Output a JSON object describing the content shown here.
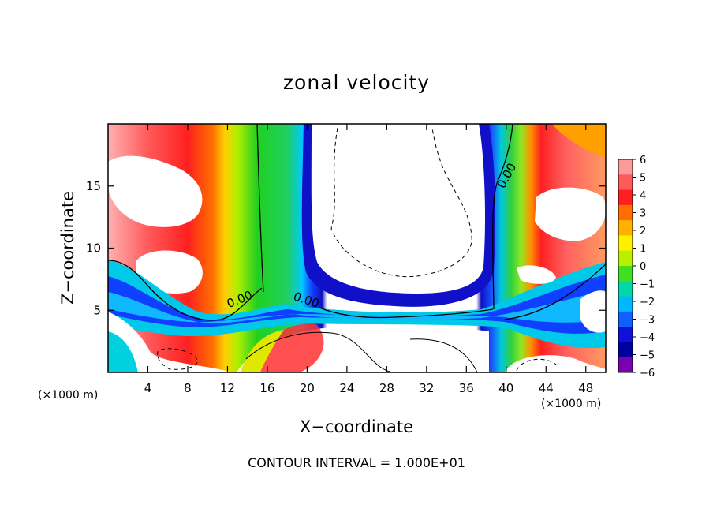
{
  "chart_data": {
    "type": "heatmap",
    "title": "zonal velocity",
    "xlabel": "X−coordinate",
    "ylabel": "Z−coordinate",
    "x_unit_left": "(×1000 m)",
    "x_unit_right": "(×1000 m)",
    "xlim": [
      0,
      50
    ],
    "ylim": [
      0,
      20
    ],
    "x_ticks": [
      4,
      8,
      12,
      16,
      20,
      24,
      28,
      32,
      36,
      40,
      44,
      48
    ],
    "x_tick_labels": [
      "4",
      "8",
      "12",
      "16",
      "20",
      "24",
      "28",
      "32",
      "36",
      "40",
      "44",
      "48"
    ],
    "y_ticks": [
      5,
      10,
      15
    ],
    "y_tick_labels": [
      "5",
      "10",
      "15"
    ],
    "colorbar": {
      "levels": [
        6,
        5,
        4,
        3,
        2,
        1,
        0,
        -1,
        -2,
        -3,
        -4,
        -5,
        -6
      ],
      "labels": [
        "6",
        "5",
        "4",
        "3",
        "2",
        "1",
        "0",
        "−1",
        "−2",
        "−3",
        "−4",
        "−5",
        "−6"
      ],
      "colors": [
        "#ff9a9a",
        "#ff5a5a",
        "#ff1f1f",
        "#ff6e00",
        "#ffb000",
        "#fff000",
        "#b8f000",
        "#40e020",
        "#00d8a8",
        "#00b8ff",
        "#1060ff",
        "#1010d8",
        "#0000a0",
        "#7a00b0"
      ]
    },
    "contour_labels": [
      "0.00",
      "0.00",
      "0.00"
    ],
    "footer": "CONTOUR INTERVAL = 1.000E+01",
    "field_notes": "values shown as filled color contours; white = saturated beyond colorbar range"
  }
}
